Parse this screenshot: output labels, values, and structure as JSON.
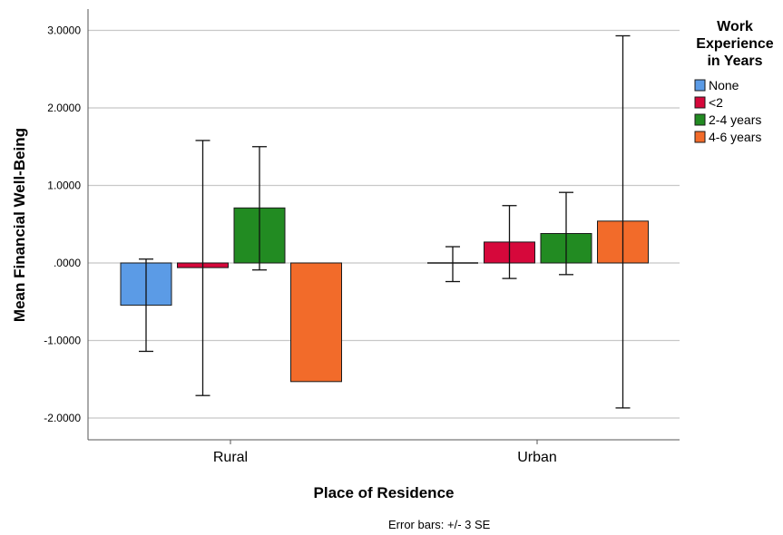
{
  "chart_data": {
    "type": "bar",
    "xlabel": "Place of Residence",
    "ylabel": "Mean Financial Well-Being",
    "categories": [
      "Rural",
      "Urban"
    ],
    "legend_title": [
      "Work",
      "Experience",
      "in Years"
    ],
    "legend_position": "top-right",
    "grid": true,
    "ylim": [
      -2.3,
      3.3
    ],
    "y_ticks": [
      -2,
      -1,
      0,
      1,
      2,
      3
    ],
    "y_tick_labels": [
      "-2.0000",
      "-1.0000",
      ".0000",
      "1.0000",
      "2.0000",
      "3.0000"
    ],
    "note": "Error bars: +/- 3 SE",
    "series": [
      {
        "name": "None",
        "color": "#5b9be6",
        "values": [
          -0.545,
          0.0
        ],
        "err_low": [
          -1.14,
          -0.24
        ],
        "err_high": [
          0.05,
          0.21
        ]
      },
      {
        "name": "<2",
        "color": "#d6083b",
        "values": [
          -0.06,
          0.27
        ],
        "err_low": [
          -1.71,
          -0.2
        ],
        "err_high": [
          1.58,
          0.74
        ]
      },
      {
        "name": "2-4 years",
        "color": "#228b22",
        "values": [
          0.71,
          0.38
        ],
        "err_low": [
          -0.09,
          -0.15
        ],
        "err_high": [
          1.5,
          0.91
        ]
      },
      {
        "name": "4-6 years",
        "color": "#f26b2a",
        "values": [
          -1.53,
          0.54
        ],
        "err_low": [
          null,
          -1.87
        ],
        "err_high": [
          null,
          2.93
        ]
      }
    ]
  }
}
